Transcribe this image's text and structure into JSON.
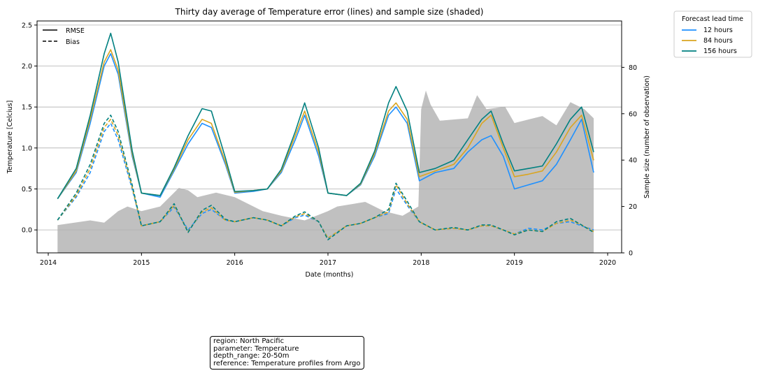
{
  "chart_data": {
    "type": "line",
    "title": "Thirty day average of Temperature error (lines) and sample size (shaded)",
    "xlabel": "Date (months)",
    "ylabel": "Temperature [Celcius]",
    "y2label": "Sample size (number of observation)",
    "xlim": [
      2013.88,
      2020.15
    ],
    "ylim": [
      -0.28,
      2.55
    ],
    "y2lim": [
      0,
      100
    ],
    "x_ticks": [
      "2014",
      "2015",
      "2016",
      "2017",
      "2018",
      "2019",
      "2020"
    ],
    "y_ticks": [
      "0.0",
      "0.5",
      "1.0",
      "1.5",
      "2.0",
      "2.5"
    ],
    "y2_ticks": [
      "0",
      "20",
      "40",
      "60",
      "80"
    ],
    "grid": "horizontal",
    "style_legend": {
      "position": "top-left",
      "entries": [
        {
          "label": "RMSE",
          "dash": "solid"
        },
        {
          "label": "Bias",
          "dash": "dashed"
        }
      ]
    },
    "lead_legend": {
      "title": "Forecast lead time",
      "position": "outside-right",
      "entries": [
        "12 hours",
        "84 hours",
        "156 hours"
      ]
    },
    "series_colors": {
      "12 hours": "#1e90ff",
      "84 hours": "#daa520",
      "156 hours": "#008080"
    },
    "shade_color": "#c0c0c0",
    "x": [
      2014.1,
      2014.3,
      2014.45,
      2014.6,
      2014.67,
      2014.75,
      2014.9,
      2015.0,
      2015.2,
      2015.35,
      2015.5,
      2015.65,
      2015.75,
      2015.9,
      2016.0,
      2016.2,
      2016.35,
      2016.5,
      2016.65,
      2016.75,
      2016.9,
      2017.0,
      2017.2,
      2017.35,
      2017.5,
      2017.65,
      2017.73,
      2017.85,
      2017.98,
      2018.15,
      2018.35,
      2018.5,
      2018.65,
      2018.75,
      2018.88,
      2019.0,
      2019.15,
      2019.3,
      2019.45,
      2019.6,
      2019.72,
      2019.85
    ],
    "series": [
      {
        "name": "12 hours",
        "metric": "RMSE",
        "values": [
          0.38,
          0.7,
          1.3,
          2.0,
          2.15,
          1.9,
          0.9,
          0.45,
          0.4,
          0.72,
          1.05,
          1.3,
          1.25,
          0.8,
          0.45,
          0.47,
          0.5,
          0.7,
          1.1,
          1.4,
          0.9,
          0.45,
          0.42,
          0.55,
          0.9,
          1.4,
          1.5,
          1.3,
          0.6,
          0.7,
          0.75,
          0.95,
          1.1,
          1.15,
          0.9,
          0.5,
          0.55,
          0.6,
          0.8,
          1.1,
          1.35,
          0.7
        ]
      },
      {
        "name": "84 hours",
        "metric": "RMSE",
        "values": [
          0.38,
          0.72,
          1.35,
          2.05,
          2.2,
          1.95,
          0.93,
          0.45,
          0.42,
          0.74,
          1.1,
          1.35,
          1.3,
          0.83,
          0.46,
          0.48,
          0.5,
          0.72,
          1.15,
          1.45,
          0.95,
          0.45,
          0.42,
          0.56,
          0.93,
          1.45,
          1.55,
          1.35,
          0.65,
          0.72,
          0.8,
          1.0,
          1.3,
          1.4,
          1.0,
          0.65,
          0.68,
          0.72,
          0.95,
          1.25,
          1.4,
          0.85
        ]
      },
      {
        "name": "156 hours",
        "metric": "RMSE",
        "values": [
          0.38,
          0.75,
          1.4,
          2.15,
          2.4,
          2.05,
          0.97,
          0.45,
          0.42,
          0.76,
          1.15,
          1.48,
          1.45,
          0.88,
          0.47,
          0.48,
          0.5,
          0.74,
          1.2,
          1.55,
          1.0,
          0.45,
          0.42,
          0.57,
          0.96,
          1.55,
          1.75,
          1.45,
          0.7,
          0.75,
          0.85,
          1.1,
          1.35,
          1.45,
          1.05,
          0.72,
          0.75,
          0.78,
          1.05,
          1.35,
          1.5,
          0.95
        ]
      },
      {
        "name": "12 hours",
        "metric": "Bias",
        "values": [
          0.12,
          0.4,
          0.7,
          1.2,
          1.3,
          1.1,
          0.5,
          0.05,
          0.1,
          0.28,
          0.0,
          0.2,
          0.25,
          0.12,
          0.1,
          0.15,
          0.12,
          0.05,
          0.15,
          0.18,
          0.1,
          -0.1,
          0.05,
          0.08,
          0.15,
          0.2,
          0.5,
          0.3,
          0.1,
          0.0,
          0.02,
          0.0,
          0.05,
          0.05,
          0.0,
          -0.05,
          0.02,
          0.0,
          0.08,
          0.1,
          0.05,
          0.0
        ]
      },
      {
        "name": "84 hours",
        "metric": "Bias",
        "values": [
          0.12,
          0.42,
          0.75,
          1.25,
          1.35,
          1.15,
          0.52,
          0.05,
          0.1,
          0.3,
          -0.02,
          0.22,
          0.27,
          0.12,
          0.1,
          0.15,
          0.12,
          0.05,
          0.16,
          0.2,
          0.1,
          -0.1,
          0.05,
          0.08,
          0.15,
          0.22,
          0.55,
          0.32,
          0.1,
          0.0,
          0.02,
          0.0,
          0.05,
          0.05,
          0.0,
          -0.05,
          0.0,
          -0.02,
          0.08,
          0.12,
          0.06,
          -0.02
        ]
      },
      {
        "name": "156 hours",
        "metric": "Bias",
        "values": [
          0.12,
          0.45,
          0.8,
          1.3,
          1.4,
          1.2,
          0.55,
          0.05,
          0.1,
          0.32,
          -0.03,
          0.24,
          0.3,
          0.13,
          0.1,
          0.15,
          0.12,
          0.05,
          0.17,
          0.22,
          0.1,
          -0.12,
          0.05,
          0.08,
          0.15,
          0.25,
          0.57,
          0.35,
          0.1,
          0.0,
          0.03,
          0.0,
          0.06,
          0.06,
          0.0,
          -0.06,
          0.0,
          -0.02,
          0.1,
          0.14,
          0.06,
          -0.03
        ]
      }
    ],
    "sample_size": {
      "x": [
        2014.1,
        2014.45,
        2014.6,
        2014.75,
        2014.85,
        2015.0,
        2015.2,
        2015.4,
        2015.5,
        2015.6,
        2015.8,
        2016.0,
        2016.3,
        2016.5,
        2016.75,
        2017.0,
        2017.1,
        2017.4,
        2017.6,
        2017.8,
        2017.97,
        2018.0,
        2018.05,
        2018.1,
        2018.2,
        2018.5,
        2018.6,
        2018.7,
        2018.9,
        2019.0,
        2019.3,
        2019.45,
        2019.6,
        2019.75,
        2019.85
      ],
      "values": [
        12,
        14,
        13,
        18,
        20,
        18,
        20,
        28,
        27,
        24,
        26,
        24,
        18,
        16,
        14,
        18,
        20,
        22,
        18,
        16,
        20,
        62,
        70,
        64,
        57,
        58,
        68,
        62,
        63,
        56,
        59,
        55,
        65,
        62,
        58
      ]
    }
  },
  "info_box": {
    "line1": "region: North Pacific",
    "line2": "parameter: Temperature",
    "line3": "depth_range: 20-50m",
    "line4": "reference: Temperature profiles from Argo"
  }
}
